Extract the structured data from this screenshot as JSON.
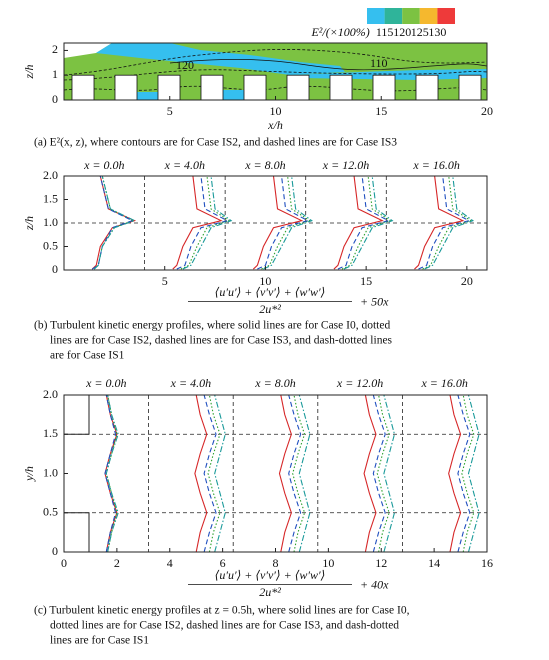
{
  "chart_data": [
    {
      "type": "contour",
      "xlabel": "x/h",
      "ylabel": "z/h",
      "xlim": [
        0,
        20
      ],
      "ylim": [
        0,
        2.3
      ],
      "xticks": [
        5,
        10,
        15,
        20
      ],
      "yticks": [
        0,
        1,
        2
      ],
      "colorbar": {
        "label": "E²/(×100%)",
        "colors": [
          "#35bfef",
          "#2fb49a",
          "#7cc242",
          "#f5b82e",
          "#ee3a3a"
        ],
        "ticks": [
          115,
          120,
          125,
          130
        ]
      },
      "annotations": [
        "120",
        "110"
      ],
      "caption": [
        "(a) E²(x, z), where contours are for Case IS2, and dashed lines are for Case IS3"
      ]
    },
    {
      "type": "line",
      "ylabel": "z/h",
      "xlabel": {
        "numerator": "⟨u′u′⟩ + ⟨v′v′⟩ + ⟨w′w′⟩",
        "denominator": "2u*²",
        "suffix": "+ 50x"
      },
      "xlim": [
        0,
        21
      ],
      "ylim": [
        0,
        2
      ],
      "xticks": [
        5,
        10,
        15,
        20
      ],
      "yticks": [
        0,
        0.5,
        {
          "value": 1,
          "label": "1.0"
        },
        1.5,
        {
          "value": 2,
          "label": "2.0"
        }
      ],
      "vlines": [
        4,
        8,
        12,
        16
      ],
      "hlines": [
        1
      ],
      "station_labels": [
        "x = 0.0h",
        "x = 4.0h",
        "x = 8.0h",
        "x = 12.0h",
        "x = 16.0h"
      ],
      "y": [
        0.02,
        0.1,
        0.5,
        0.9,
        1.05,
        1.3,
        2.0
      ],
      "series": [
        {
          "color": "#d62728",
          "dash": "solid",
          "x": [
            1.4,
            1.6,
            1.8,
            2.4,
            3.5,
            2.2,
            1.8
          ]
        },
        {
          "color": "#2ca02c",
          "dash": "dotted",
          "x": [
            1.5,
            1.7,
            1.9,
            2.5,
            3.4,
            2.3,
            1.9
          ]
        },
        {
          "color": "#1f4fbf",
          "dash": "dashed",
          "x": [
            1.4,
            1.7,
            1.9,
            2.4,
            3.4,
            2.2,
            1.8
          ]
        },
        {
          "color": "#1a9a9a",
          "dash": "dashdot",
          "x": [
            1.5,
            1.7,
            1.9,
            2.5,
            3.5,
            2.3,
            1.9
          ]
        },
        {
          "color": "#d62728",
          "dash": "solid",
          "x": [
            5.4,
            5.6,
            5.9,
            6.4,
            7.8,
            6.6,
            6.4
          ]
        },
        {
          "color": "#2ca02c",
          "dash": "dotted",
          "x": [
            5.8,
            6.2,
            6.6,
            7.1,
            8.2,
            7.3,
            7.1
          ]
        },
        {
          "color": "#1f4fbf",
          "dash": "dashed",
          "x": [
            5.6,
            6.0,
            6.3,
            6.8,
            8.1,
            7.0,
            6.8
          ]
        },
        {
          "color": "#1a9a9a",
          "dash": "dashdot",
          "x": [
            5.9,
            6.3,
            6.8,
            7.3,
            8.3,
            7.5,
            7.3
          ]
        },
        {
          "color": "#d62728",
          "dash": "solid",
          "x": [
            9.4,
            9.6,
            9.9,
            10.4,
            11.8,
            10.6,
            10.4
          ]
        },
        {
          "color": "#2ca02c",
          "dash": "dotted",
          "x": [
            9.8,
            10.2,
            10.6,
            11.1,
            12.2,
            11.3,
            11.1
          ]
        },
        {
          "color": "#1f4fbf",
          "dash": "dashed",
          "x": [
            9.6,
            10.0,
            10.3,
            10.8,
            12.1,
            11.0,
            10.8
          ]
        },
        {
          "color": "#1a9a9a",
          "dash": "dashdot",
          "x": [
            9.9,
            10.3,
            10.8,
            11.3,
            12.3,
            11.5,
            11.3
          ]
        },
        {
          "color": "#d62728",
          "dash": "solid",
          "x": [
            13.4,
            13.6,
            13.9,
            14.4,
            15.8,
            14.6,
            14.4
          ]
        },
        {
          "color": "#2ca02c",
          "dash": "dotted",
          "x": [
            13.8,
            14.2,
            14.6,
            15.1,
            16.2,
            15.3,
            15.1
          ]
        },
        {
          "color": "#1f4fbf",
          "dash": "dashed",
          "x": [
            13.6,
            14.0,
            14.3,
            14.8,
            16.1,
            15.0,
            14.8
          ]
        },
        {
          "color": "#1a9a9a",
          "dash": "dashdot",
          "x": [
            13.9,
            14.3,
            14.8,
            15.3,
            16.3,
            15.5,
            15.3
          ]
        },
        {
          "color": "#d62728",
          "dash": "solid",
          "x": [
            17.4,
            17.6,
            17.9,
            18.4,
            19.8,
            18.6,
            18.4
          ]
        },
        {
          "color": "#2ca02c",
          "dash": "dotted",
          "x": [
            17.8,
            18.2,
            18.6,
            19.1,
            20.2,
            19.3,
            19.1
          ]
        },
        {
          "color": "#1f4fbf",
          "dash": "dashed",
          "x": [
            17.6,
            18.0,
            18.3,
            18.8,
            20.1,
            19.0,
            18.8
          ]
        },
        {
          "color": "#1a9a9a",
          "dash": "dashdot",
          "x": [
            17.9,
            18.3,
            18.8,
            19.3,
            20.3,
            19.5,
            19.3
          ]
        }
      ],
      "caption": [
        "(b) Turbulent kinetic energy profiles, where solid lines are for Case I0, dotted",
        "lines are for Case IS2, dashed lines are for Case IS3, and dash-dotted lines",
        "are for Case IS1"
      ]
    },
    {
      "type": "line",
      "ylabel": "y/h",
      "xlabel": {
        "numerator": "⟨u′u′⟩ + ⟨v′v′⟩ + ⟨w′w′⟩",
        "denominator": "2u*²",
        "suffix": "+ 40x"
      },
      "xlim": [
        0,
        16
      ],
      "ylim": [
        0,
        2
      ],
      "xticks": [
        0,
        2,
        4,
        6,
        8,
        10,
        12,
        14,
        16
      ],
      "yticks": [
        0,
        0.5,
        {
          "value": 1,
          "label": "1.0"
        },
        1.5,
        {
          "value": 2,
          "label": "2.0"
        }
      ],
      "vlines": [
        3.2,
        6.4,
        9.6,
        12.8
      ],
      "hlines": [
        0.5,
        1.5
      ],
      "station_labels": [
        "x = 0.0h",
        "x = 4.0h",
        "x = 8.0h",
        "x = 12.0h",
        "x = 16.0h"
      ],
      "y": [
        0,
        0.25,
        0.5,
        0.75,
        1.0,
        1.25,
        1.5,
        1.75,
        2.0
      ],
      "series": [
        {
          "color": "#d62728",
          "dash": "solid",
          "x": [
            1.6,
            1.75,
            2.0,
            1.75,
            1.55,
            1.75,
            2.0,
            1.75,
            1.6
          ]
        },
        {
          "color": "#2ca02c",
          "dash": "dotted",
          "x": [
            1.65,
            1.8,
            2.0,
            1.8,
            1.6,
            1.8,
            2.0,
            1.8,
            1.65
          ]
        },
        {
          "color": "#1f4fbf",
          "dash": "dashed",
          "x": [
            1.6,
            1.75,
            1.95,
            1.75,
            1.55,
            1.75,
            1.95,
            1.75,
            1.6
          ]
        },
        {
          "color": "#1a9a9a",
          "dash": "dashdot",
          "x": [
            1.65,
            1.8,
            2.05,
            1.8,
            1.6,
            1.8,
            2.05,
            1.8,
            1.65
          ]
        },
        {
          "color": "#d62728",
          "dash": "solid",
          "x": [
            5.0,
            5.15,
            5.4,
            5.15,
            4.95,
            5.15,
            5.4,
            5.15,
            5.0
          ]
        },
        {
          "color": "#2ca02c",
          "dash": "dotted",
          "x": [
            5.5,
            5.65,
            5.9,
            5.65,
            5.45,
            5.65,
            5.9,
            5.65,
            5.5
          ]
        },
        {
          "color": "#1f4fbf",
          "dash": "dashed",
          "x": [
            5.3,
            5.5,
            5.75,
            5.5,
            5.3,
            5.5,
            5.75,
            5.5,
            5.3
          ]
        },
        {
          "color": "#1a9a9a",
          "dash": "dashdot",
          "x": [
            5.7,
            5.9,
            6.1,
            5.9,
            5.7,
            5.9,
            6.1,
            5.9,
            5.7
          ]
        },
        {
          "color": "#d62728",
          "dash": "solid",
          "x": [
            8.2,
            8.35,
            8.6,
            8.35,
            8.15,
            8.35,
            8.6,
            8.35,
            8.2
          ]
        },
        {
          "color": "#2ca02c",
          "dash": "dotted",
          "x": [
            8.7,
            8.85,
            9.1,
            8.85,
            8.65,
            8.85,
            9.1,
            8.85,
            8.7
          ]
        },
        {
          "color": "#1f4fbf",
          "dash": "dashed",
          "x": [
            8.5,
            8.7,
            8.95,
            8.7,
            8.5,
            8.7,
            8.95,
            8.7,
            8.5
          ]
        },
        {
          "color": "#1a9a9a",
          "dash": "dashdot",
          "x": [
            8.9,
            9.1,
            9.3,
            9.1,
            8.9,
            9.1,
            9.3,
            9.1,
            8.9
          ]
        },
        {
          "color": "#d62728",
          "dash": "solid",
          "x": [
            11.4,
            11.55,
            11.8,
            11.55,
            11.35,
            11.55,
            11.8,
            11.55,
            11.4
          ]
        },
        {
          "color": "#2ca02c",
          "dash": "dotted",
          "x": [
            11.9,
            12.05,
            12.3,
            12.05,
            11.85,
            12.05,
            12.3,
            12.05,
            11.9
          ]
        },
        {
          "color": "#1f4fbf",
          "dash": "dashed",
          "x": [
            11.7,
            11.9,
            12.15,
            11.9,
            11.7,
            11.9,
            12.15,
            11.9,
            11.7
          ]
        },
        {
          "color": "#1a9a9a",
          "dash": "dashdot",
          "x": [
            12.1,
            12.3,
            12.5,
            12.3,
            12.1,
            12.3,
            12.5,
            12.3,
            12.1
          ]
        },
        {
          "color": "#d62728",
          "dash": "solid",
          "x": [
            14.6,
            14.75,
            15.0,
            14.75,
            14.55,
            14.75,
            15.0,
            14.75,
            14.6
          ]
        },
        {
          "color": "#2ca02c",
          "dash": "dotted",
          "x": [
            15.1,
            15.25,
            15.5,
            15.25,
            15.05,
            15.25,
            15.5,
            15.25,
            15.1
          ]
        },
        {
          "color": "#1f4fbf",
          "dash": "dashed",
          "x": [
            14.9,
            15.1,
            15.35,
            15.1,
            14.9,
            15.1,
            15.35,
            15.1,
            14.9
          ]
        },
        {
          "color": "#1a9a9a",
          "dash": "dashdot",
          "x": [
            15.3,
            15.5,
            15.7,
            15.5,
            15.3,
            15.5,
            15.7,
            15.5,
            15.3
          ]
        }
      ],
      "caption": [
        "(c) Turbulent kinetic energy profiles at z = 0.5h, where solid lines are for Case I0,",
        "dotted  lines are for Case IS2, dashed lines are for  Case IS3, and dash-dotted",
        "lines are for Case IS1"
      ]
    }
  ]
}
